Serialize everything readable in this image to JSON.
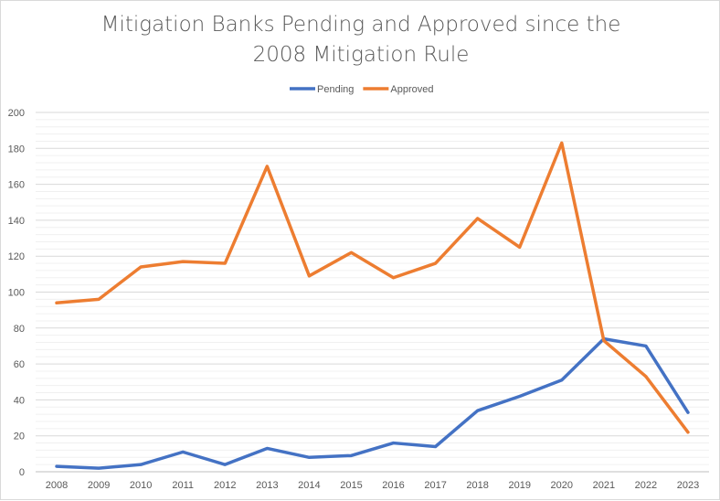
{
  "chart_data": {
    "type": "line",
    "title_lines": [
      "Mitigation Banks Pending and Approved since the",
      "2008 Mitigation Rule"
    ],
    "xlabel": "",
    "ylabel": "",
    "categories": [
      "2008",
      "2009",
      "2010",
      "2011",
      "2012",
      "2013",
      "2014",
      "2015",
      "2016",
      "2017",
      "2018",
      "2019",
      "2020",
      "2021",
      "2022",
      "2023"
    ],
    "ylim": [
      0,
      200
    ],
    "yticks": [
      0,
      20,
      40,
      60,
      80,
      100,
      120,
      140,
      160,
      180,
      200
    ],
    "minor_grid_step": 4,
    "grid": true,
    "legend_position": "top",
    "series": [
      {
        "name": "Pending",
        "color": "#4472c4",
        "values": [
          3,
          2,
          4,
          11,
          4,
          13,
          8,
          9,
          16,
          14,
          34,
          42,
          51,
          74,
          70,
          33
        ]
      },
      {
        "name": "Approved",
        "color": "#ed7d31",
        "values": [
          94,
          96,
          114,
          117,
          116,
          170,
          109,
          122,
          108,
          116,
          141,
          125,
          183,
          73,
          53,
          22
        ]
      }
    ]
  }
}
